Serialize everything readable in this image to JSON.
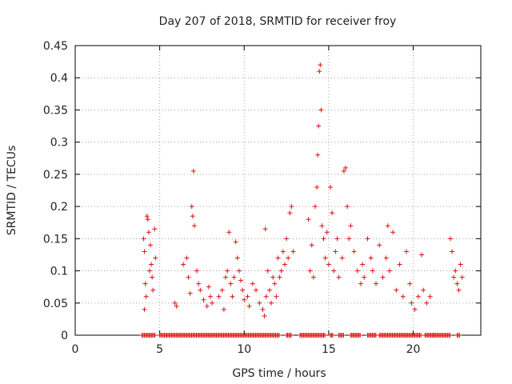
{
  "chart_data": {
    "type": "scatter",
    "title": "Day 207 of 2018, SRMTID for receiver froy",
    "xlabel": "GPS time / hours",
    "ylabel": "SRMTID / TECUs",
    "xlim": [
      0,
      24
    ],
    "ylim": [
      0,
      0.45
    ],
    "grid": true,
    "marker": "plus",
    "color": "#dd1111",
    "x_ticks": [
      0,
      5,
      10,
      15,
      20
    ],
    "x_tick_labels": [
      "0",
      "5",
      "10",
      "15",
      "20"
    ],
    "y_ticks": [
      0,
      0.05,
      0.1,
      0.15,
      0.2,
      0.25,
      0.3,
      0.35,
      0.4,
      0.45
    ],
    "y_tick_labels": [
      "0",
      "0.05",
      "0.1",
      "0.15",
      "0.2",
      "0.25",
      "0.3",
      "0.35",
      "0.4",
      "0.45"
    ],
    "series": [
      {
        "name": "SRMTID",
        "points": [
          [
            4.05,
            0.15
          ],
          [
            4.1,
            0.13
          ],
          [
            4.15,
            0.08
          ],
          [
            4.2,
            0.06
          ],
          [
            4.25,
            0.185
          ],
          [
            4.3,
            0.18
          ],
          [
            4.35,
            0.16
          ],
          [
            4.45,
            0.14
          ],
          [
            4.5,
            0.11
          ],
          [
            4.55,
            0.09
          ],
          [
            4.6,
            0.07
          ],
          [
            4.7,
            0.165
          ],
          [
            4.75,
            0.12
          ],
          [
            4.1,
            0.04
          ],
          [
            4.4,
            0.1
          ],
          [
            5.9,
            0.05
          ],
          [
            6.0,
            0.045
          ],
          [
            6.4,
            0.11
          ],
          [
            6.6,
            0.12
          ],
          [
            6.7,
            0.09
          ],
          [
            6.8,
            0.065
          ],
          [
            6.9,
            0.2
          ],
          [
            6.95,
            0.185
          ],
          [
            7.0,
            0.255
          ],
          [
            7.05,
            0.17
          ],
          [
            7.2,
            0.1
          ],
          [
            7.3,
            0.08
          ],
          [
            7.4,
            0.07
          ],
          [
            7.6,
            0.055
          ],
          [
            7.8,
            0.045
          ],
          [
            7.9,
            0.075
          ],
          [
            8.0,
            0.06
          ],
          [
            8.1,
            0.05
          ],
          [
            8.5,
            0.06
          ],
          [
            8.7,
            0.07
          ],
          [
            8.8,
            0.04
          ],
          [
            8.9,
            0.09
          ],
          [
            9.0,
            0.1
          ],
          [
            9.1,
            0.16
          ],
          [
            9.2,
            0.08
          ],
          [
            9.3,
            0.06
          ],
          [
            9.4,
            0.09
          ],
          [
            9.5,
            0.145
          ],
          [
            9.6,
            0.12
          ],
          [
            9.7,
            0.1
          ],
          [
            9.8,
            0.085
          ],
          [
            9.9,
            0.07
          ],
          [
            10.0,
            0.055
          ],
          [
            10.2,
            0.06
          ],
          [
            10.3,
            0.045
          ],
          [
            10.5,
            0.08
          ],
          [
            10.7,
            0.07
          ],
          [
            10.9,
            0.05
          ],
          [
            11.1,
            0.04
          ],
          [
            11.2,
            0.03
          ],
          [
            11.25,
            0.165
          ],
          [
            11.3,
            0.06
          ],
          [
            11.4,
            0.1
          ],
          [
            11.5,
            0.07
          ],
          [
            11.6,
            0.05
          ],
          [
            11.7,
            0.09
          ],
          [
            11.8,
            0.08
          ],
          [
            11.9,
            0.06
          ],
          [
            12.0,
            0.12
          ],
          [
            12.1,
            0.09
          ],
          [
            12.2,
            0.1
          ],
          [
            12.3,
            0.13
          ],
          [
            12.4,
            0.11
          ],
          [
            12.5,
            0.15
          ],
          [
            12.6,
            0.12
          ],
          [
            12.7,
            0.19
          ],
          [
            12.8,
            0.2
          ],
          [
            12.9,
            0.13
          ],
          [
            13.8,
            0.18
          ],
          [
            13.9,
            0.1
          ],
          [
            14.0,
            0.14
          ],
          [
            14.1,
            0.09
          ],
          [
            14.2,
            0.2
          ],
          [
            14.3,
            0.23
          ],
          [
            14.35,
            0.28
          ],
          [
            14.4,
            0.325
          ],
          [
            14.45,
            0.41
          ],
          [
            14.5,
            0.42
          ],
          [
            14.55,
            0.35
          ],
          [
            14.6,
            0.17
          ],
          [
            14.7,
            0.15
          ],
          [
            14.8,
            0.12
          ],
          [
            14.9,
            0.16
          ],
          [
            15.0,
            0.11
          ],
          [
            15.1,
            0.23
          ],
          [
            15.2,
            0.19
          ],
          [
            15.3,
            0.1
          ],
          [
            15.4,
            0.13
          ],
          [
            15.5,
            0.15
          ],
          [
            15.6,
            0.09
          ],
          [
            15.8,
            0.12
          ],
          [
            15.9,
            0.255
          ],
          [
            16.0,
            0.26
          ],
          [
            16.1,
            0.2
          ],
          [
            16.2,
            0.15
          ],
          [
            16.3,
            0.17
          ],
          [
            16.5,
            0.13
          ],
          [
            16.7,
            0.1
          ],
          [
            16.9,
            0.08
          ],
          [
            17.0,
            0.11
          ],
          [
            17.1,
            0.09
          ],
          [
            17.3,
            0.15
          ],
          [
            17.5,
            0.12
          ],
          [
            17.6,
            0.1
          ],
          [
            17.8,
            0.08
          ],
          [
            18.0,
            0.14
          ],
          [
            18.2,
            0.09
          ],
          [
            18.4,
            0.12
          ],
          [
            18.5,
            0.17
          ],
          [
            18.6,
            0.1
          ],
          [
            18.8,
            0.16
          ],
          [
            19.0,
            0.07
          ],
          [
            19.2,
            0.11
          ],
          [
            19.4,
            0.06
          ],
          [
            19.6,
            0.13
          ],
          [
            19.8,
            0.08
          ],
          [
            19.9,
            0.05
          ],
          [
            20.1,
            0.04
          ],
          [
            20.3,
            0.06
          ],
          [
            20.5,
            0.125
          ],
          [
            20.6,
            0.07
          ],
          [
            20.8,
            0.05
          ],
          [
            21.0,
            0.06
          ],
          [
            22.2,
            0.15
          ],
          [
            22.3,
            0.13
          ],
          [
            22.4,
            0.09
          ],
          [
            22.5,
            0.1
          ],
          [
            22.6,
            0.08
          ],
          [
            22.7,
            0.07
          ],
          [
            22.8,
            0.11
          ],
          [
            22.9,
            0.09
          ]
        ]
      }
    ],
    "zero_run_ranges": [
      [
        3.95,
        4.75
      ],
      [
        5.0,
        12.1
      ],
      [
        12.5,
        12.8
      ],
      [
        13.3,
        14.8
      ],
      [
        15.1,
        15.3
      ],
      [
        15.6,
        15.9
      ],
      [
        16.3,
        16.9
      ],
      [
        17.3,
        17.8
      ],
      [
        18.0,
        20.5
      ],
      [
        20.7,
        21.2
      ],
      [
        21.2,
        22.2
      ],
      [
        22.6,
        22.8
      ]
    ]
  }
}
